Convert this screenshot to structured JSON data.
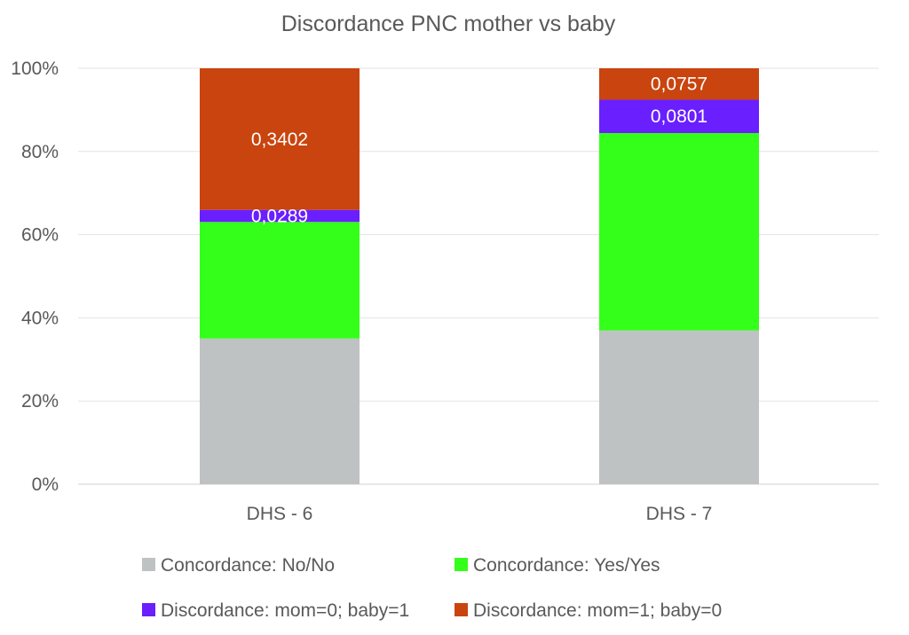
{
  "chart_data": {
    "type": "bar",
    "stacked": true,
    "percent_stacked": true,
    "title": "Discordance PNC mother vs baby",
    "categories": [
      "DHS - 6",
      "DHS - 7"
    ],
    "y_ticks": [
      "0%",
      "20%",
      "40%",
      "60%",
      "80%",
      "100%"
    ],
    "ylim": [
      0,
      1
    ],
    "grid": true,
    "legend_position": "bottom",
    "series": [
      {
        "name": "Concordance: No/No",
        "color": "#bfc2c2",
        "values": [
          0.35,
          0.37
        ],
        "labels": [
          "",
          ""
        ]
      },
      {
        "name": "Concordance: Yes/Yes",
        "color": "#33ff1a",
        "values": [
          0.28,
          0.475
        ],
        "labels": [
          "",
          ""
        ]
      },
      {
        "name": "Discordance: mom=0; baby=1",
        "color": "#6a1fff",
        "values": [
          0.0289,
          0.0801
        ],
        "labels": [
          "0,0289",
          "0,0801"
        ]
      },
      {
        "name": "Discordance: mom=1; baby=0",
        "color": "#c9440e",
        "values": [
          0.3402,
          0.0757
        ],
        "labels": [
          "0,3402",
          "0,0757"
        ]
      }
    ]
  }
}
